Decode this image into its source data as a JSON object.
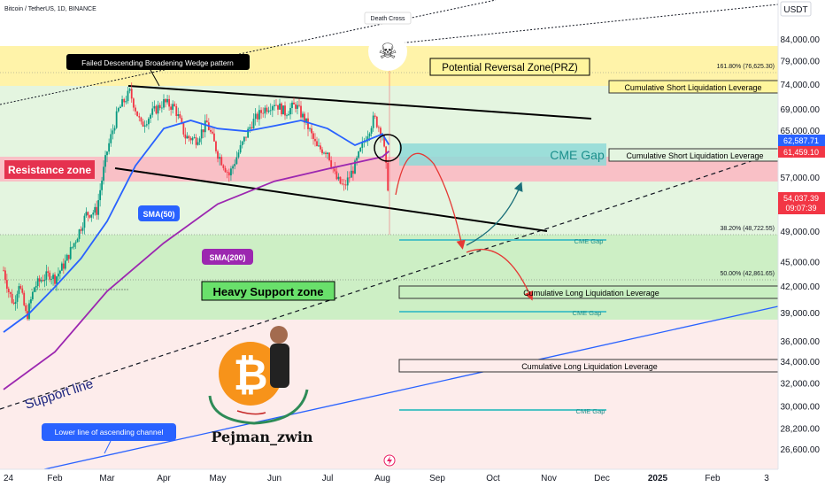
{
  "header": {
    "symbol_line": "Bitcoin / TetherUS, 1D, BINANCE",
    "currency": "USDT"
  },
  "chart_data": {
    "type": "candlestick",
    "instrument": "Bitcoin / TetherUS",
    "timeframe": "1D",
    "exchange": "BINANCE",
    "x_axis_ticks": [
      "24",
      "Feb",
      "Mar",
      "Apr",
      "May",
      "Jun",
      "Jul",
      "Aug",
      "Sep",
      "Oct",
      "Nov",
      "Dec",
      "2025",
      "Feb",
      "3"
    ],
    "y_axis_ticks": [
      84000,
      79000,
      74000,
      69000,
      65000,
      61000,
      57000,
      53000,
      49000,
      45000,
      42000,
      39000,
      36000,
      34000,
      32000,
      30000,
      28200,
      26600
    ],
    "y_axis_labels": [
      "84,000.00",
      "79,000.00",
      "74,000.00",
      "69,000.00",
      "65,000.00",
      "61,000.00",
      "57,000.00",
      "53,000.00",
      "49,000.00",
      "45,000.00",
      "42,000.00",
      "39,000.00",
      "36,000.00",
      "34,000.00",
      "32,000.00",
      "30,000.00",
      "28,200.00",
      "26,600.00"
    ],
    "log_scale": true,
    "ylim": [
      25500,
      93000
    ],
    "price_badges": [
      {
        "value": "62,587.71",
        "color": "#2962ff"
      },
      {
        "value": "61,459.10",
        "color": "#f23645"
      },
      {
        "value": "54,037.39",
        "color": "#f23645",
        "timer": "09:07:39"
      }
    ],
    "fib_levels": [
      {
        "label": "161.80% (76,625.30)",
        "price": 76625.3
      },
      {
        "label": "38.20% (48,722.55)",
        "price": 48722.55
      },
      {
        "label": "50.00% (42,861.65)",
        "price": 42861.65
      }
    ],
    "sma_labels": [
      "SMA(50)",
      "SMA(200)"
    ],
    "price_path": [
      {
        "t": 0.0,
        "p": 44000
      },
      {
        "t": 0.1,
        "p": 41500
      },
      {
        "t": 0.2,
        "p": 40000
      },
      {
        "t": 0.3,
        "p": 42500
      },
      {
        "t": 0.45,
        "p": 38500
      },
      {
        "t": 0.6,
        "p": 42000
      },
      {
        "t": 0.75,
        "p": 43000
      },
      {
        "t": 0.9,
        "p": 43500
      },
      {
        "t": 1.0,
        "p": 43000
      },
      {
        "t": 1.2,
        "p": 45000
      },
      {
        "t": 1.4,
        "p": 48000
      },
      {
        "t": 1.6,
        "p": 51500
      },
      {
        "t": 1.8,
        "p": 52000
      },
      {
        "t": 2.0,
        "p": 61500
      },
      {
        "t": 2.2,
        "p": 69000
      },
      {
        "t": 2.4,
        "p": 72500
      },
      {
        "t": 2.6,
        "p": 66000
      },
      {
        "t": 2.8,
        "p": 68500
      },
      {
        "t": 3.0,
        "p": 70500
      },
      {
        "t": 3.2,
        "p": 69500
      },
      {
        "t": 3.4,
        "p": 64000
      },
      {
        "t": 3.6,
        "p": 63500
      },
      {
        "t": 3.8,
        "p": 66500
      },
      {
        "t": 4.0,
        "p": 61000
      },
      {
        "t": 4.2,
        "p": 57500
      },
      {
        "t": 4.4,
        "p": 62000
      },
      {
        "t": 4.6,
        "p": 66500
      },
      {
        "t": 4.8,
        "p": 69000
      },
      {
        "t": 5.0,
        "p": 70500
      },
      {
        "t": 5.2,
        "p": 68500
      },
      {
        "t": 5.4,
        "p": 70000
      },
      {
        "t": 5.6,
        "p": 66500
      },
      {
        "t": 5.8,
        "p": 62000
      },
      {
        "t": 6.0,
        "p": 61500
      },
      {
        "t": 6.15,
        "p": 57000
      },
      {
        "t": 6.3,
        "p": 55500
      },
      {
        "t": 6.5,
        "p": 59000
      },
      {
        "t": 6.7,
        "p": 64000
      },
      {
        "t": 6.85,
        "p": 67500
      },
      {
        "t": 7.0,
        "p": 64500
      },
      {
        "t": 7.08,
        "p": 57500
      },
      {
        "t": 7.12,
        "p": 54000
      }
    ],
    "sma50_path": [
      {
        "t": 0.0,
        "p": 37000
      },
      {
        "t": 0.5,
        "p": 39000
      },
      {
        "t": 1.0,
        "p": 42000
      },
      {
        "t": 1.5,
        "p": 45500
      },
      {
        "t": 2.0,
        "p": 50500
      },
      {
        "t": 2.5,
        "p": 59000
      },
      {
        "t": 3.0,
        "p": 65500
      },
      {
        "t": 3.5,
        "p": 67000
      },
      {
        "t": 4.0,
        "p": 65500
      },
      {
        "t": 4.5,
        "p": 65000
      },
      {
        "t": 5.0,
        "p": 66000
      },
      {
        "t": 5.5,
        "p": 67000
      },
      {
        "t": 6.0,
        "p": 65500
      },
      {
        "t": 6.5,
        "p": 62500
      },
      {
        "t": 7.0,
        "p": 64500
      },
      {
        "t": 7.12,
        "p": 62587
      }
    ],
    "sma200_path": [
      {
        "t": 0.0,
        "p": 31500
      },
      {
        "t": 1.0,
        "p": 35000
      },
      {
        "t": 2.0,
        "p": 41500
      },
      {
        "t": 3.0,
        "p": 47500
      },
      {
        "t": 4.0,
        "p": 53000
      },
      {
        "t": 5.0,
        "p": 56500
      },
      {
        "t": 6.0,
        "p": 58500
      },
      {
        "t": 7.0,
        "p": 60500
      },
      {
        "t": 7.12,
        "p": 61459
      }
    ]
  },
  "annotations": {
    "death_cross": "Death Cross",
    "skull": "☠",
    "wedge_label": "Failed Descending Broadening Wedge pattern",
    "prz": "Potential Reversal Zone(PRZ)",
    "short_liq_1": "Cumulative Short Liquidation Leverage",
    "short_liq_2": "Cumulative Short Liquidation Leverage",
    "resistance": "Resistance zone",
    "cme_gap_big": "CME Gap",
    "cme_gap_1": "CME Gap",
    "cme_gap_2": "CME Gap",
    "cme_gap_3": "CME Gap",
    "heavy_support": "Heavy Support zone",
    "long_liq_1": "Cumulative Long Liquidation Leverage",
    "long_liq_2": "Cumulative Long Liquidation Leverage",
    "support_line": "Support line",
    "channel_label": "Lower line of ascending channel",
    "watermark": "Pejman_zwin",
    "bitcoin_symbol": "₿"
  },
  "colors": {
    "candle_up": "#089981",
    "candle_down": "#f23645",
    "sma50": "#2962ff",
    "sma200": "#9c27b0",
    "prz_fill": "#fff59d",
    "resistance_fill": "#f8b8bf",
    "support_fill": "#c8efc1",
    "cme_fill": "#8fd9d7",
    "bitcoin": "#f7931a"
  },
  "icons": {
    "skull": "skull-icon",
    "bitcoin": "bitcoin-logo-icon",
    "flash": "lightning-icon"
  }
}
